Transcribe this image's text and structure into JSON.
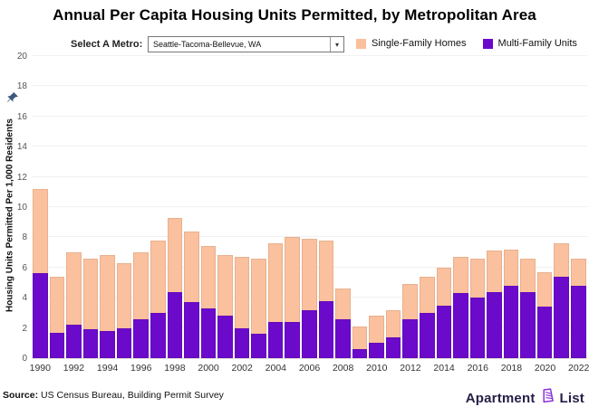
{
  "title": "Annual Per Capita Housing Units Permitted, by Metropolitan Area",
  "controls": {
    "select_label": "Select A Metro:",
    "select_value": "Seattle-Tacoma-Bellevue, WA",
    "select_arrow": "▾"
  },
  "legend": [
    {
      "label": "Single-Family Homes",
      "color": "#FBC09D"
    },
    {
      "label": "Multi-Family Units",
      "color": "#6B0ACB"
    }
  ],
  "chart_data": {
    "type": "bar",
    "stacked": true,
    "title": "Annual Per Capita Housing Units Permitted, by Metropolitan Area",
    "xlabel": "",
    "ylabel": "Housing Units Permitted Per 1,000 Residents",
    "ylim": [
      0,
      20
    ],
    "ytick_step": 2,
    "xtick_every": 2,
    "grid": true,
    "legend_position": "top",
    "categories": [
      1990,
      1991,
      1992,
      1993,
      1994,
      1995,
      1996,
      1997,
      1998,
      1999,
      2000,
      2001,
      2002,
      2003,
      2004,
      2005,
      2006,
      2007,
      2008,
      2009,
      2010,
      2011,
      2012,
      2013,
      2014,
      2015,
      2016,
      2017,
      2018,
      2019,
      2020,
      2021,
      2022
    ],
    "series": [
      {
        "name": "Multi-Family Units",
        "color": "#6B0ACB",
        "values": [
          5.6,
          1.7,
          2.2,
          1.9,
          1.8,
          2.0,
          2.6,
          3.0,
          4.4,
          3.7,
          3.3,
          2.8,
          2.0,
          1.6,
          2.4,
          2.4,
          3.2,
          3.8,
          2.6,
          0.6,
          1.0,
          1.4,
          2.6,
          3.0,
          3.5,
          4.3,
          4.0,
          4.4,
          4.8,
          4.4,
          3.4,
          5.4,
          4.8
        ]
      },
      {
        "name": "Single-Family Homes",
        "color": "#FBC09D",
        "values": [
          5.6,
          3.7,
          4.8,
          4.7,
          5.0,
          4.3,
          4.4,
          4.8,
          4.9,
          4.7,
          4.1,
          4.0,
          4.7,
          5.0,
          5.2,
          5.6,
          4.7,
          4.0,
          2.0,
          1.5,
          1.8,
          1.8,
          2.3,
          2.4,
          2.5,
          2.4,
          2.6,
          2.7,
          2.4,
          2.2,
          2.3,
          2.2,
          1.8
        ]
      }
    ]
  },
  "footer": {
    "source_label": "Source:",
    "source_text": " US Census Bureau, Building Permit Survey",
    "brand_word1": "Apartment",
    "brand_word2": "List"
  }
}
